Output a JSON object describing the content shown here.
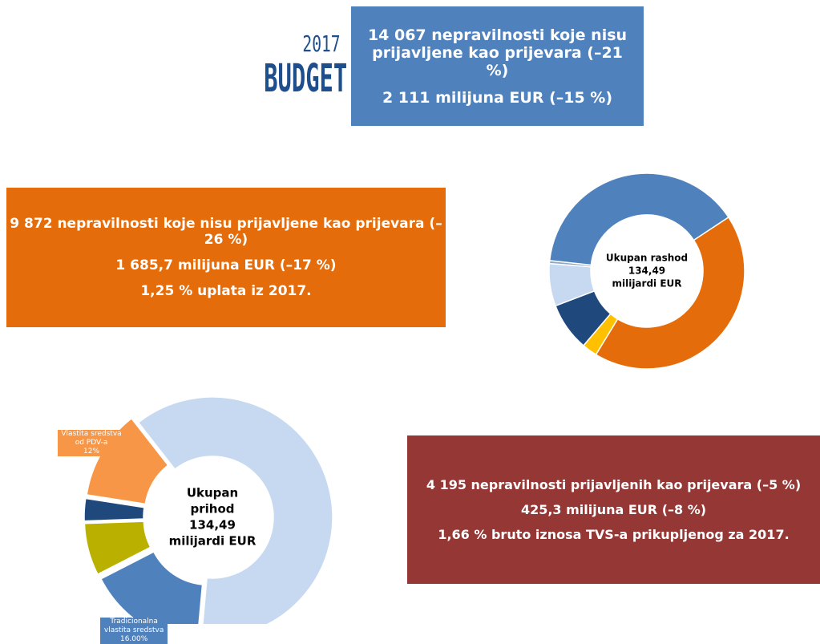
{
  "logo": {
    "year": "2017",
    "word": "BUDGET"
  },
  "boxes": [
    {
      "lines": [
        "14 067 nepravilnosti koje nisu prijavljene kao prijevara (–21 %)",
        "2 111 milijuna EUR (–15 %)"
      ],
      "color": "#4f81bd"
    },
    {
      "lines": [
        "9 872 nepravilnosti koje nisu prijavljene kao prijevara (–26 %)",
        "1 685,7 milijuna EUR (–17 %)",
        "1,25 % uplata iz 2017."
      ],
      "color": "#e46c0a"
    },
    {
      "lines": [
        "4 195 nepravilnosti prijavljenih kao prijevara (–5 %)",
        "425,3 milijuna EUR (–8 %)",
        "1,66 % bruto iznosa TVS-a prikupljenog za 2017."
      ],
      "color": "#953735"
    }
  ],
  "chart_data": [
    {
      "type": "donut",
      "center_text": [
        "Ukupan rashod",
        "134,49",
        "milijardi EUR"
      ],
      "categories": [
        null,
        null,
        null,
        null,
        null,
        null
      ],
      "values": [
        43,
        2.5,
        8,
        7,
        0.5,
        39
      ],
      "colors": [
        "#e46c0a",
        "#ffc000",
        "#1f497d",
        "#c6d9f1",
        "#8ea9c8",
        "#4f81bd"
      ]
    },
    {
      "type": "donut",
      "center_text": [
        "Ukupan",
        "prihod",
        "134,49",
        "milijardi EUR"
      ],
      "categories": [
        null,
        "Tradicionalna vlastita sredstva",
        null,
        null,
        "Vlastita sredstva od PDV-a"
      ],
      "values": [
        62,
        16,
        7,
        3,
        12
      ],
      "value_labels": [
        null,
        "16.00%",
        null,
        null,
        "12%"
      ],
      "colors": [
        "#c6d9f1",
        "#4f81bd",
        "#b9b000",
        "#1f497d",
        "#f79646"
      ]
    }
  ]
}
